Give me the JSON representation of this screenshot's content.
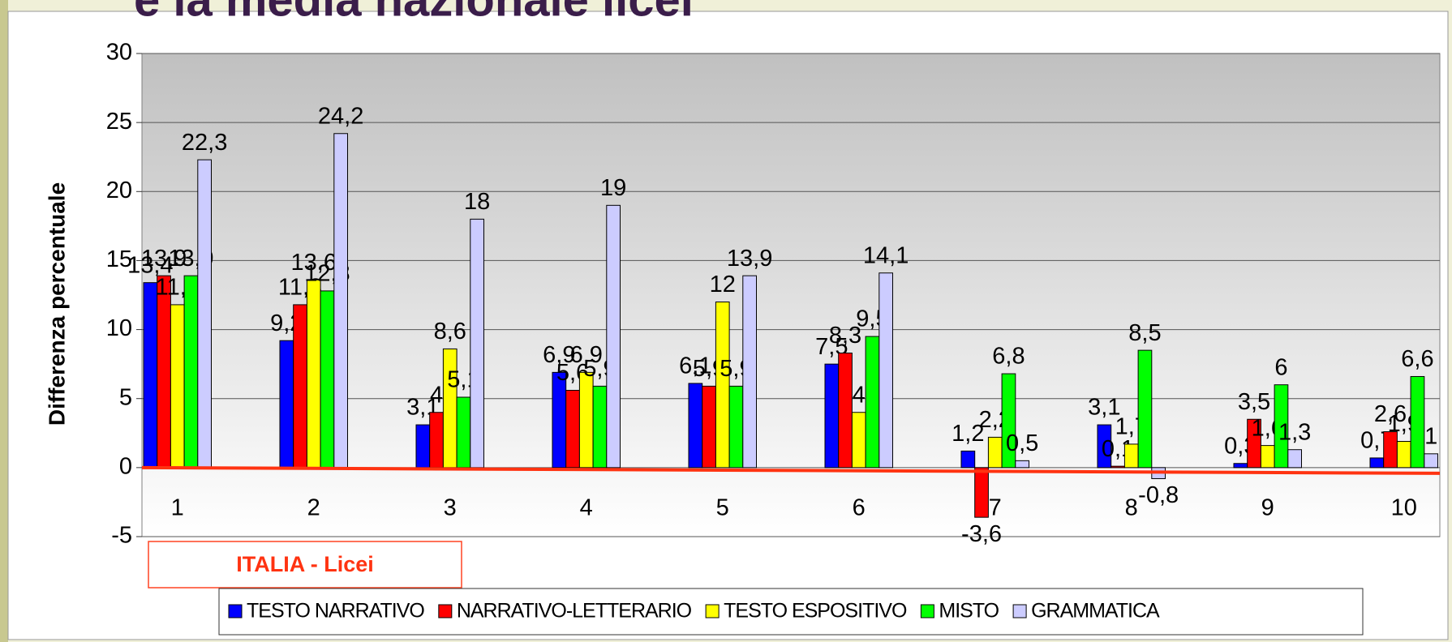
{
  "chart_data": {
    "type": "bar",
    "title": "e la media nazionale licei",
    "y_label": "Differenza percentuale",
    "annotation": "ITALIA - Licei",
    "categories": [
      "1",
      "2",
      "3",
      "4",
      "5",
      "6",
      "7",
      "8",
      "9",
      "10"
    ],
    "series": [
      {
        "name": "TESTO NARRATIVO",
        "color": "#0000ff",
        "values": [
          13.4,
          9.2,
          3.1,
          6.9,
          6.1,
          7.5,
          1.2,
          3.1,
          0.3,
          0.7
        ],
        "value_labels": [
          "13,4",
          "9,2",
          "3,1",
          "6,9",
          "6,1",
          "7,5",
          "1,2",
          "3,1",
          "0,3",
          "0,7"
        ]
      },
      {
        "name": "NARRATIVO-LETTERARIO",
        "color": "#ff0000",
        "values": [
          13.9,
          11.8,
          4,
          5.6,
          5.9,
          8.3,
          -3.6,
          0.1,
          3.5,
          2.6
        ],
        "value_labels": [
          "13,9",
          "11,8",
          "4",
          "5,6",
          "5,9",
          "8,3",
          "-3,6",
          "0,1",
          "3,5",
          "2,6"
        ]
      },
      {
        "name": "TESTO ESPOSITIVO",
        "color": "#ffff00",
        "values": [
          11.8,
          13.6,
          8.6,
          6.9,
          12,
          4,
          2.2,
          1.7,
          1.6,
          1.9
        ],
        "value_labels": [
          "11,8",
          "13,6",
          "8,6",
          "6,9",
          "12",
          "4",
          "2,2",
          "1,7",
          "1,6",
          "1,9"
        ]
      },
      {
        "name": "MISTO",
        "color": "#00ff00",
        "values": [
          13.9,
          12.8,
          5.1,
          5.9,
          5.9,
          9.5,
          6.8,
          8.5,
          6,
          6.6
        ],
        "value_labels": [
          "13,9",
          "12,8",
          "5,1",
          "5,9",
          "5,9",
          "9,5",
          "6,8",
          "8,5",
          "6",
          "6,6"
        ]
      },
      {
        "name": "GRAMMATICA",
        "color": "#ccccff",
        "values": [
          22.3,
          24.2,
          18,
          19,
          13.9,
          14.1,
          0.5,
          -0.8,
          1.3,
          1
        ],
        "value_labels": [
          "22,3",
          "24,2",
          "18",
          "19",
          "13,9",
          "14,1",
          "0,5",
          "-0,8",
          "1,3",
          "1"
        ]
      }
    ],
    "ylim": [
      -5,
      30
    ],
    "yticks": [
      -5,
      0,
      5,
      10,
      15,
      20,
      25,
      30
    ],
    "grid": true
  }
}
